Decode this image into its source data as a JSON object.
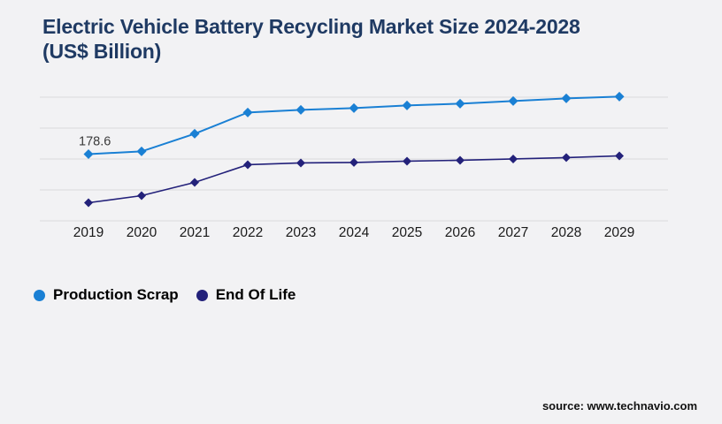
{
  "page": {
    "background": "#f2f2f4"
  },
  "title": {
    "line1": "Electric Vehicle Battery Recycling Market Size 2024-2028",
    "line2": "(US$ Billion)",
    "color": "#1f3a63"
  },
  "legend": [
    {
      "label": "Production Scrap",
      "color": "#1a80d4"
    },
    {
      "label": "End Of Life",
      "color": "#23217a"
    }
  ],
  "source": {
    "label": "source: www.technavio.com"
  },
  "colors": {
    "gridline": "#d9d9db",
    "axis_label": "#1a1a1a",
    "annotation": "#3a3a3a"
  },
  "chart_data": {
    "type": "line",
    "title": "Electric Vehicle Battery Recycling Market Size 2024-2028 (US$ Billion)",
    "xlabel": "",
    "ylabel": "",
    "x": [
      2019,
      2020,
      2021,
      2022,
      2023,
      2024,
      2025,
      2026,
      2027,
      2028,
      2029
    ],
    "series": [
      {
        "name": "Production Scrap",
        "color": "#1a80d4",
        "marker": "diamond",
        "values": [
          178.6,
          185.8,
          233.1,
          289.9,
          297.0,
          301.7,
          308.8,
          313.5,
          320.6,
          327.7,
          332.4
        ]
      },
      {
        "name": "End Of Life",
        "color": "#23217a",
        "marker": "diamond",
        "values": [
          48.5,
          67.4,
          102.9,
          150.2,
          155.0,
          156.2,
          159.7,
          162.1,
          165.6,
          169.2,
          173.9
        ]
      }
    ],
    "data_labels": [
      {
        "series": "Production Scrap",
        "x": 2019,
        "text": "178.6"
      }
    ],
    "ylim": [
      0,
      331
    ],
    "grid": "horizontal",
    "gridline_count": 5,
    "legend_position": "bottom-left",
    "note": "Only the 2019 Production Scrap point is labeled (178.6); all other values estimated from gridlines."
  }
}
